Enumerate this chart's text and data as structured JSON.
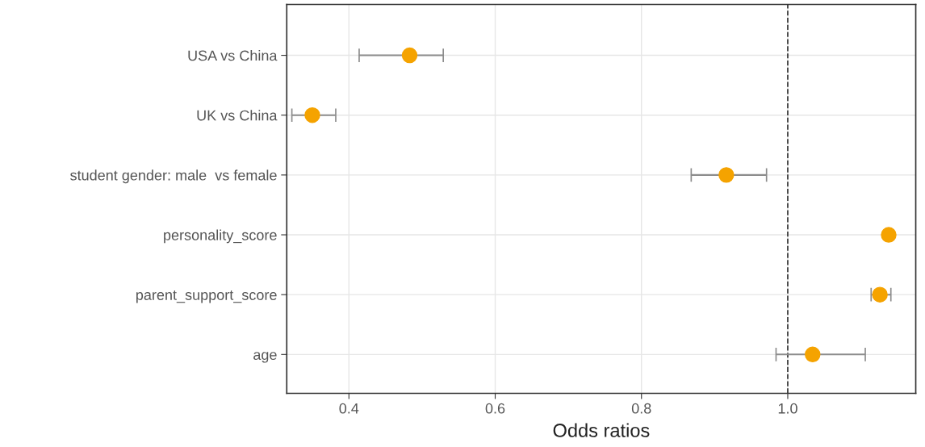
{
  "chart_data": {
    "type": "scatter",
    "orientation": "horizontal",
    "xlabel": "Odds ratios",
    "categories": [
      "USA vs China",
      "UK vs China",
      "student gender: male  vs female",
      "personality_score",
      "parent_support_score",
      "age"
    ],
    "series": [
      {
        "color": "#f5a300",
        "values": [
          0.483,
          0.35,
          0.916,
          1.138,
          1.126,
          1.034
        ],
        "errors": [
          [
            0.414,
            0.529
          ],
          [
            0.322,
            0.382
          ],
          [
            0.868,
            0.971
          ],
          null,
          [
            1.114,
            1.141
          ],
          [
            0.984,
            1.106
          ]
        ]
      }
    ],
    "xlim": [
      0.315,
      1.175
    ],
    "xticks": [
      {
        "value": 0.4,
        "label": "0.4"
      },
      {
        "value": 0.6,
        "label": "0.6"
      },
      {
        "value": 0.8,
        "label": "0.8"
      },
      {
        "value": 1.0,
        "label": "1.0"
      }
    ],
    "ref_lines": [
      {
        "axis": "x",
        "value": 1.0,
        "label": null,
        "color": "#333333",
        "line_style": "dashed"
      }
    ],
    "grid": true,
    "marker": "circle"
  }
}
